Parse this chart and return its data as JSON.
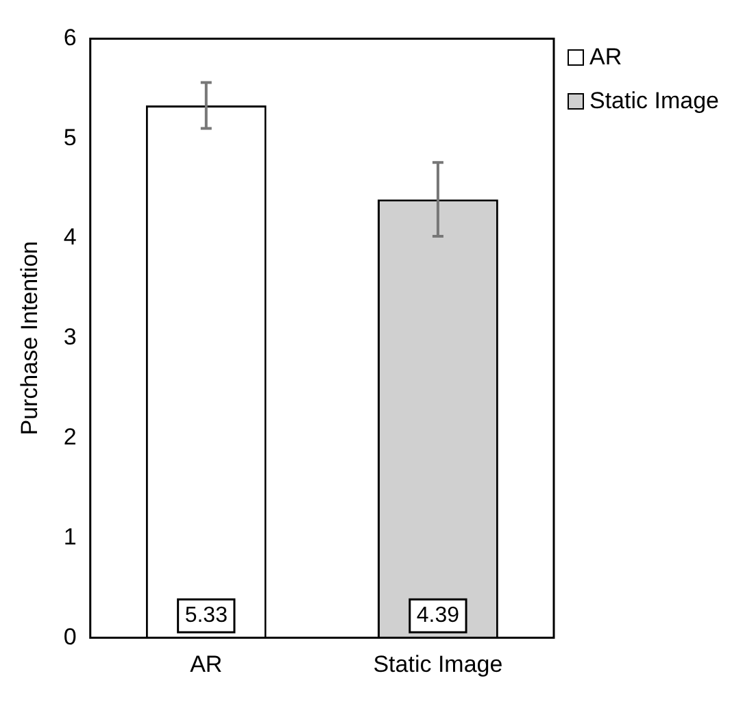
{
  "chart_data": {
    "type": "bar",
    "ylabel": "Purchase Intention",
    "categories": [
      "AR",
      "Static Image"
    ],
    "series": [
      {
        "name": "AR",
        "color": "#ffffff",
        "values": [
          5.33,
          null
        ],
        "errors": [
          0.23,
          null
        ]
      },
      {
        "name": "Static Image",
        "color": "#d0d0d0",
        "values": [
          null,
          4.39
        ],
        "errors": [
          null,
          0.37
        ]
      }
    ],
    "ylim": [
      0,
      6
    ],
    "yticks": [
      0,
      1,
      2,
      3,
      4,
      5,
      6
    ],
    "grid": false,
    "legend": "top right",
    "data_labels": true
  }
}
